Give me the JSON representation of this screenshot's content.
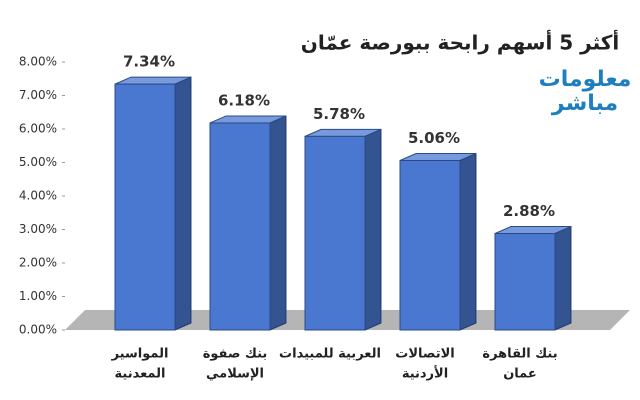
{
  "chart_data": {
    "type": "bar3d",
    "title": "أكثر 5 أسهم رابحة ببورصة عمّان",
    "logo": [
      "معلومات",
      "مباشر"
    ],
    "categories": [
      [
        "المواسير",
        "المعدنية"
      ],
      [
        "بنك صفوة",
        "الإسلامي"
      ],
      [
        "العربية للمبيدات"
      ],
      [
        "الاتصالات",
        "الأردنية"
      ],
      [
        "بنك القاهرة",
        "عمان"
      ]
    ],
    "values": [
      7.34,
      6.18,
      5.78,
      5.06,
      2.88
    ],
    "value_labels": [
      "7.34%",
      "6.18%",
      "5.78%",
      "5.06%",
      "2.88%"
    ],
    "color": "#4a78d0",
    "ylim": [
      0,
      8
    ],
    "yticks": [
      {
        "value": 0,
        "label": "0.00%"
      },
      {
        "value": 1,
        "label": "1.00%"
      },
      {
        "value": 2,
        "label": "2.00%"
      },
      {
        "value": 3,
        "label": "3.00%"
      },
      {
        "value": 4,
        "label": "4.00%"
      },
      {
        "value": 5,
        "label": "5.00%"
      },
      {
        "value": 6,
        "label": "6.00%"
      },
      {
        "value": 7,
        "label": "7.00%"
      },
      {
        "value": 8,
        "label": "8.00%"
      }
    ],
    "grid": false
  }
}
